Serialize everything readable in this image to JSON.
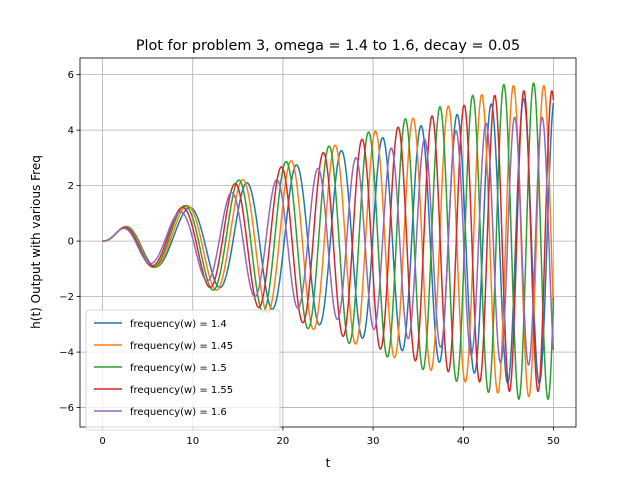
{
  "chart_data": {
    "type": "line",
    "title": "Plot for problem 3, omega = 1.4 to 1.6, decay = 0.05",
    "xlabel": "t",
    "ylabel": "h(t) Output with various Freq",
    "xlim": [
      -2.5,
      52.5
    ],
    "ylim": [
      -6.7,
      6.6
    ],
    "xticks": [
      0,
      10,
      20,
      30,
      40,
      50
    ],
    "yticks": [
      -6,
      -4,
      -2,
      0,
      2,
      4,
      6
    ],
    "xtick_labels": [
      "0",
      "10",
      "20",
      "30",
      "40",
      "50"
    ],
    "ytick_labels": [
      "−6",
      "−4",
      "−2",
      "0",
      "2",
      "4",
      "6"
    ],
    "grid": true,
    "legend_position": "lower-left",
    "t_range": [
      0,
      50
    ],
    "model": "driven damped oscillator: h'' + 0.05 h' + h = sin(w t), h(0)=0, h'(0)=0, modulated",
    "series": [
      {
        "name": "frequency(w) = 1.4",
        "w": 1.4,
        "color": "#1f77b4"
      },
      {
        "name": "frequency(w) = 1.45",
        "w": 1.45,
        "color": "#ff7f0e"
      },
      {
        "name": "frequency(w) = 1.5",
        "w": 1.5,
        "color": "#2ca02c"
      },
      {
        "name": "frequency(w) = 1.55",
        "w": 1.55,
        "color": "#d62728"
      },
      {
        "name": "frequency(w) = 1.6",
        "w": 1.6,
        "color": "#9467bd"
      }
    ]
  }
}
